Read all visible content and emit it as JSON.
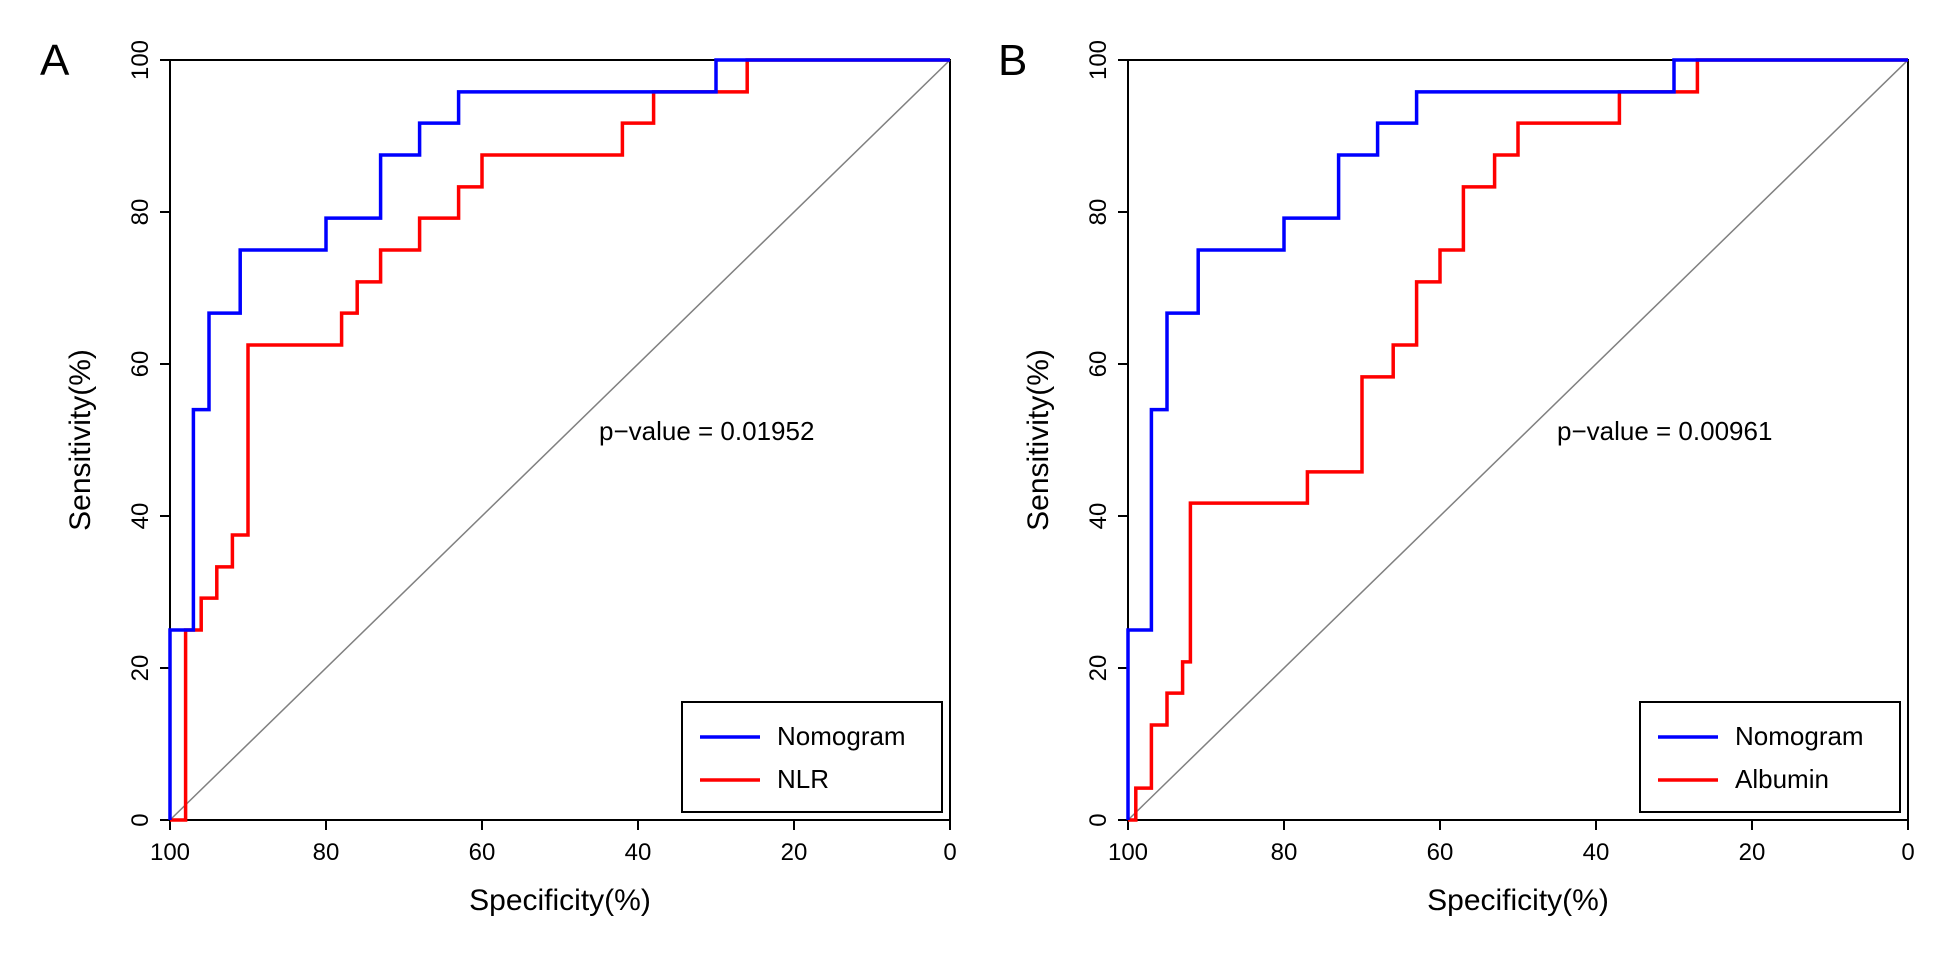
{
  "layout": {
    "total_width": 1946,
    "total_height": 965,
    "panels": 2,
    "aspect_per_panel": 1.0
  },
  "axes": {
    "xlabel": "Specificity(%)",
    "ylabel": "Sensitivity(%)",
    "xlim": [
      100,
      0
    ],
    "ylim": [
      0,
      100
    ],
    "xticks": [
      100,
      80,
      60,
      40,
      20,
      0
    ],
    "yticks": [
      0,
      20,
      40,
      60,
      80,
      100
    ],
    "axis_color": "#000000",
    "axis_linewidth": 2,
    "tick_fontsize": 24,
    "label_fontsize": 30,
    "panel_label_fontsize": 44,
    "annotation_fontsize": 26,
    "diagonal_color": "#808080",
    "diagonal_linewidth": 1.5,
    "line_linewidth": 3.5,
    "legend_border_color": "#000000",
    "legend_fontsize": 26,
    "legend_position": "bottom-right"
  },
  "colors": {
    "nomogram": "#0000ff",
    "series2_A": "#ff0000",
    "series2_B": "#ff0000",
    "background": "#ffffff"
  },
  "panelA": {
    "label": "A",
    "pvalue_text": "p−value = 0.01952",
    "legend": {
      "s1": "Nomogram",
      "s2": "NLR"
    },
    "nomogram": [
      [
        100,
        0
      ],
      [
        100,
        25
      ],
      [
        97,
        25
      ],
      [
        97,
        54
      ],
      [
        95,
        54
      ],
      [
        95,
        66.7
      ],
      [
        91,
        66.7
      ],
      [
        91,
        75
      ],
      [
        80,
        75
      ],
      [
        80,
        79.2
      ],
      [
        73,
        79.2
      ],
      [
        73,
        87.5
      ],
      [
        68,
        87.5
      ],
      [
        68,
        91.7
      ],
      [
        63,
        91.7
      ],
      [
        63,
        95.8
      ],
      [
        32,
        95.8
      ],
      [
        32,
        95.8
      ],
      [
        30,
        95.8
      ],
      [
        30,
        100
      ],
      [
        0,
        100
      ]
    ],
    "nlr": [
      [
        100,
        0
      ],
      [
        98,
        0
      ],
      [
        98,
        25
      ],
      [
        96,
        25
      ],
      [
        96,
        29.2
      ],
      [
        94,
        29.2
      ],
      [
        94,
        33.3
      ],
      [
        92,
        33.3
      ],
      [
        92,
        37.5
      ],
      [
        90,
        37.5
      ],
      [
        90,
        62.5
      ],
      [
        83,
        62.5
      ],
      [
        83,
        62.5
      ],
      [
        78,
        62.5
      ],
      [
        78,
        66.7
      ],
      [
        76,
        66.7
      ],
      [
        76,
        70.8
      ],
      [
        73,
        70.8
      ],
      [
        73,
        75
      ],
      [
        68,
        75
      ],
      [
        68,
        79.2
      ],
      [
        63,
        79.2
      ],
      [
        63,
        83.3
      ],
      [
        60,
        83.3
      ],
      [
        60,
        87.5
      ],
      [
        45,
        87.5
      ],
      [
        45,
        87.5
      ],
      [
        42,
        87.5
      ],
      [
        42,
        91.7
      ],
      [
        38,
        91.7
      ],
      [
        38,
        95.8
      ],
      [
        26,
        95.8
      ],
      [
        26,
        100
      ],
      [
        0,
        100
      ]
    ]
  },
  "panelB": {
    "label": "B",
    "pvalue_text": "p−value = 0.00961",
    "legend": {
      "s1": "Nomogram",
      "s2": "Albumin"
    },
    "nomogram": [
      [
        100,
        0
      ],
      [
        100,
        25
      ],
      [
        97,
        25
      ],
      [
        97,
        54
      ],
      [
        95,
        54
      ],
      [
        95,
        66.7
      ],
      [
        91,
        66.7
      ],
      [
        91,
        75
      ],
      [
        80,
        75
      ],
      [
        80,
        79.2
      ],
      [
        73,
        79.2
      ],
      [
        73,
        87.5
      ],
      [
        68,
        87.5
      ],
      [
        68,
        91.7
      ],
      [
        63,
        91.7
      ],
      [
        63,
        95.8
      ],
      [
        32,
        95.8
      ],
      [
        32,
        95.8
      ],
      [
        30,
        95.8
      ],
      [
        30,
        100
      ],
      [
        0,
        100
      ]
    ],
    "albumin": [
      [
        100,
        0
      ],
      [
        99,
        0
      ],
      [
        99,
        4.2
      ],
      [
        97,
        4.2
      ],
      [
        97,
        12.5
      ],
      [
        95,
        12.5
      ],
      [
        95,
        16.7
      ],
      [
        93,
        16.7
      ],
      [
        93,
        20.8
      ],
      [
        92,
        20.8
      ],
      [
        92,
        41.7
      ],
      [
        77,
        41.7
      ],
      [
        77,
        45.8
      ],
      [
        73,
        45.8
      ],
      [
        73,
        45.8
      ],
      [
        70,
        45.8
      ],
      [
        70,
        58.3
      ],
      [
        66,
        58.3
      ],
      [
        66,
        62.5
      ],
      [
        63,
        62.5
      ],
      [
        63,
        70.8
      ],
      [
        60,
        70.8
      ],
      [
        60,
        75
      ],
      [
        57,
        75
      ],
      [
        57,
        83.3
      ],
      [
        53,
        83.3
      ],
      [
        53,
        87.5
      ],
      [
        50,
        87.5
      ],
      [
        50,
        91.7
      ],
      [
        42,
        91.7
      ],
      [
        42,
        91.7
      ],
      [
        37,
        91.7
      ],
      [
        37,
        95.8
      ],
      [
        27,
        95.8
      ],
      [
        27,
        100
      ],
      [
        0,
        100
      ]
    ]
  }
}
